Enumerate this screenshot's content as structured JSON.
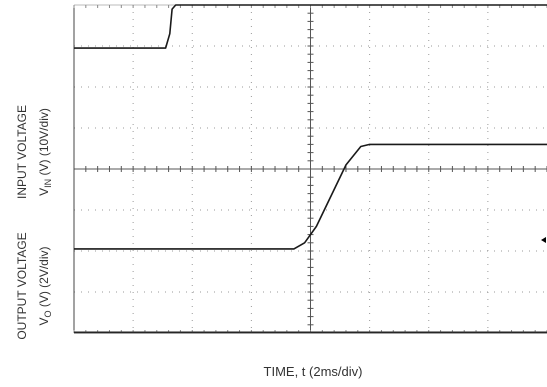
{
  "chart_data": {
    "type": "line",
    "xlabel": "TIME, t (2ms/div)",
    "ylabels": {
      "input": {
        "line1": "INPUT VOLTAGE",
        "line2_prefix": "V",
        "line2_sub": "IN",
        "line2_suffix": " (V) (10V/div)"
      },
      "output": {
        "line1": "OUTPUT VOLTAGE",
        "line2_prefix": "V",
        "line2_sub": "O",
        "line2_suffix": " (V) (2V/div)"
      }
    },
    "grid": true,
    "xdivs": 8,
    "ydivs": 8,
    "series": [
      {
        "trace": "input",
        "points_div": [
          [
            0,
            6.95
          ],
          [
            1.55,
            6.95
          ],
          [
            1.62,
            7.3
          ],
          [
            1.66,
            7.9
          ],
          [
            1.72,
            8.0
          ],
          [
            8.0,
            8.0
          ]
        ]
      },
      {
        "trace": "output",
        "points_div": [
          [
            0,
            2.05
          ],
          [
            3.72,
            2.05
          ],
          [
            3.9,
            2.2
          ],
          [
            4.1,
            2.6
          ],
          [
            4.6,
            4.1
          ],
          [
            4.85,
            4.55
          ],
          [
            5.0,
            4.6
          ],
          [
            8.0,
            4.6
          ]
        ]
      }
    ],
    "markers": [
      {
        "trace": "output_ground",
        "points_div": [
          [
            0,
            0.02
          ],
          [
            8.0,
            0.02
          ]
        ]
      }
    ]
  }
}
